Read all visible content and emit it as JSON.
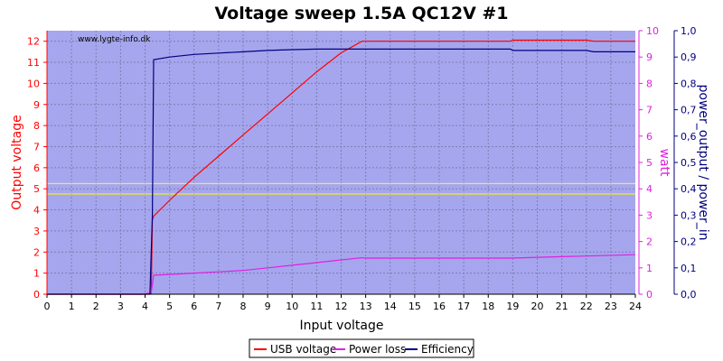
{
  "chart_data": {
    "type": "line",
    "title": "Voltage sweep 1.5A QC12V #1",
    "watermark": "www.lygte-info.dk",
    "xlabel": "Input voltage",
    "ylabel_left": "Output voltage",
    "ylabel_right1": "watt",
    "ylabel_right2": "power_output / power_in",
    "xlim": [
      0,
      24
    ],
    "ylim_left": [
      0,
      12.5
    ],
    "ylim_right1": [
      0,
      10
    ],
    "ylim_right2": [
      0,
      1.0
    ],
    "x_ticks": [
      "0",
      "1",
      "2",
      "3",
      "4",
      "5",
      "6",
      "7",
      "8",
      "9",
      "10",
      "11",
      "12",
      "13",
      "14",
      "15",
      "16",
      "17",
      "18",
      "19",
      "20",
      "21",
      "22",
      "23",
      "24"
    ],
    "y_left_ticks": [
      "0",
      "1",
      "2",
      "3",
      "4",
      "5",
      "6",
      "7",
      "8",
      "9",
      "10",
      "11",
      "12"
    ],
    "y_right1_ticks": [
      "0",
      "1",
      "2",
      "3",
      "4",
      "5",
      "6",
      "7",
      "8",
      "9",
      "10"
    ],
    "y_right2_ticks": [
      "0,0",
      "0,1",
      "0,2",
      "0,3",
      "0,4",
      "0,5",
      "0,6",
      "0,7",
      "0,8",
      "0,9",
      "1,0"
    ],
    "grid": true,
    "reference_lines_left_axis": [
      4.75,
      5.25
    ],
    "legend_position": "bottom-center",
    "series": [
      {
        "name": "USB voltage",
        "axis": "left",
        "color": "#ff0000",
        "x": [
          0,
          4.1,
          4.25,
          4.3,
          4.35,
          5,
          6,
          7,
          8,
          9,
          10,
          11,
          12,
          12.85,
          13,
          15,
          18,
          18.9,
          19,
          20,
          22,
          22.3,
          23,
          24
        ],
        "y": [
          0,
          0,
          0.05,
          3.5,
          3.7,
          4.45,
          5.55,
          6.55,
          7.55,
          8.55,
          9.55,
          10.55,
          11.45,
          12.0,
          12.0,
          12.0,
          12.0,
          12.0,
          12.05,
          12.05,
          12.05,
          12.0,
          12.0,
          12.0
        ]
      },
      {
        "name": "Power loss",
        "axis": "right1",
        "color": "#e020e0",
        "x": [
          0,
          3.9,
          4.25,
          4.35,
          5,
          6,
          7,
          8,
          9,
          10,
          11,
          12,
          12.8,
          13,
          15,
          18,
          19,
          20,
          22,
          24
        ],
        "y": [
          0,
          0,
          0.05,
          0.72,
          0.75,
          0.8,
          0.85,
          0.9,
          1.0,
          1.1,
          1.2,
          1.3,
          1.38,
          1.37,
          1.37,
          1.37,
          1.37,
          1.4,
          1.45,
          1.5
        ]
      },
      {
        "name": "Efficiency",
        "axis": "right2",
        "color": "#000080",
        "x": [
          0,
          4.2,
          4.3,
          4.35,
          5,
          6,
          7,
          8,
          9,
          10,
          11,
          12,
          13,
          18.9,
          19,
          22,
          22.3,
          24
        ],
        "y": [
          0,
          0,
          0.3,
          0.89,
          0.9,
          0.91,
          0.915,
          0.92,
          0.925,
          0.928,
          0.93,
          0.93,
          0.93,
          0.93,
          0.925,
          0.925,
          0.92,
          0.92
        ]
      }
    ]
  }
}
